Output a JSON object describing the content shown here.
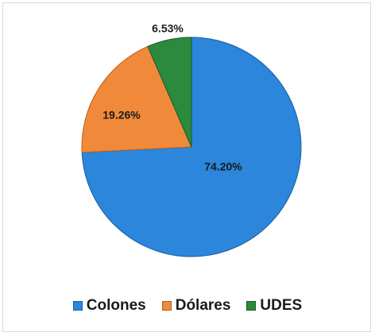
{
  "chart_data": {
    "type": "pie",
    "categories": [
      "Colones",
      "Dólares",
      "UDES"
    ],
    "values": [
      74.2,
      19.26,
      6.53
    ],
    "labels": [
      "74.20%",
      "19.26%",
      "6.53%"
    ],
    "colors": [
      "#2b86dc",
      "#f08a3a",
      "#2b8a3e"
    ],
    "legend_position": "bottom",
    "start_angle_deg": 0,
    "direction": "clockwise"
  }
}
